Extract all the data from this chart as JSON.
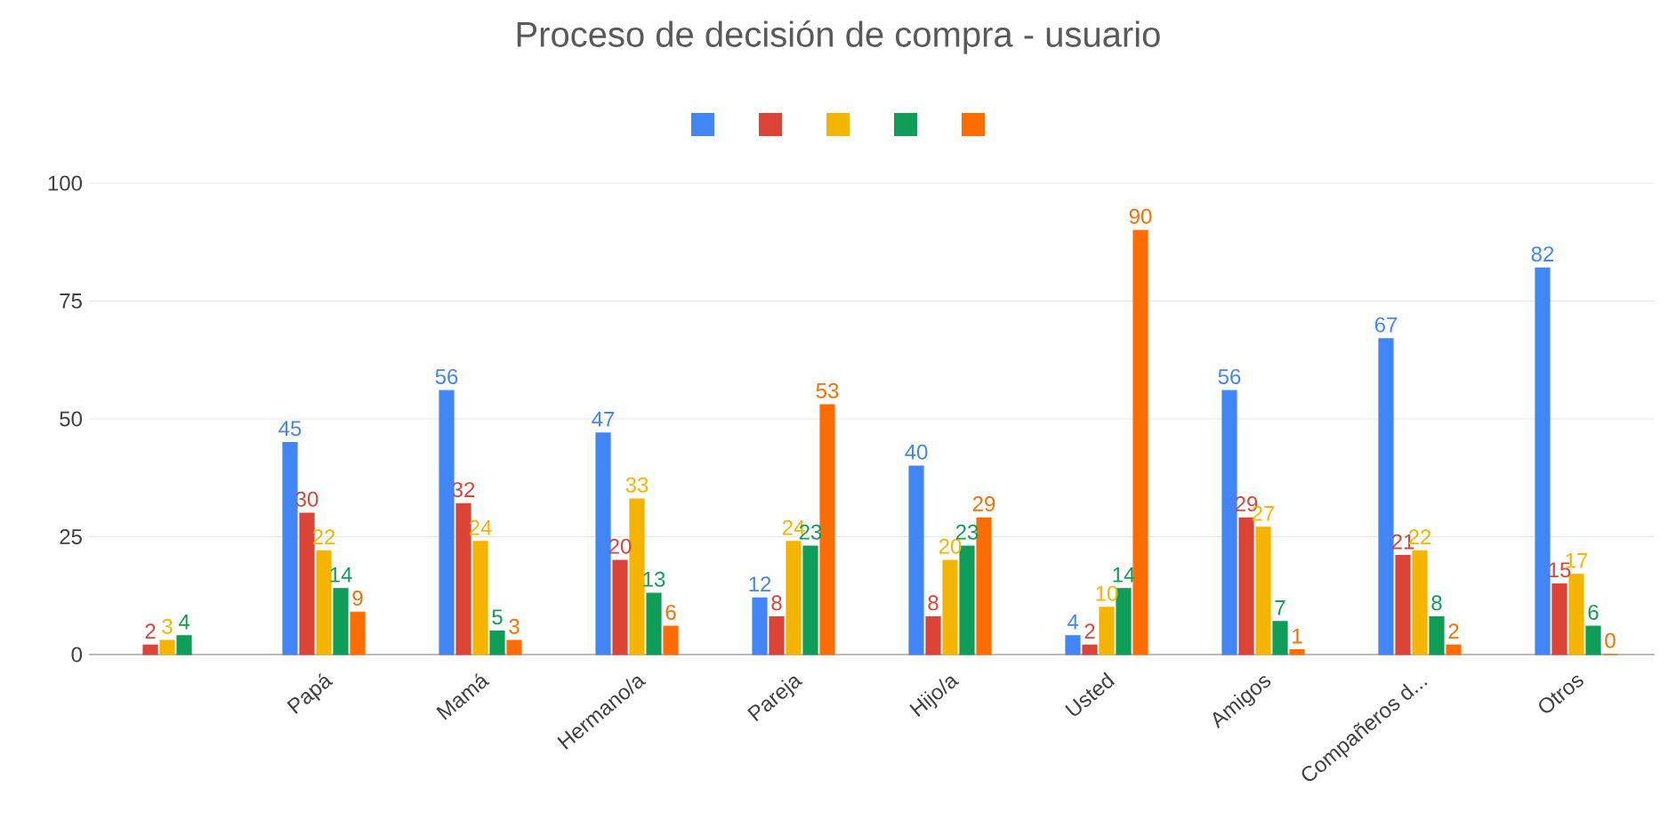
{
  "chart_data": {
    "type": "bar",
    "title": "Proceso de decisión de compra - usuario",
    "categories": [
      null,
      "Papá",
      "Mamá",
      "Hermano/a",
      "Pareja",
      "Hijo/a",
      "Usted",
      "Amigos",
      "Compañeros d...",
      "Otros"
    ],
    "series": [
      {
        "color": "#4285f4",
        "values": [
          null,
          45,
          56,
          47,
          12,
          40,
          4,
          56,
          67,
          82
        ]
      },
      {
        "color": "#db4437",
        "values": [
          2,
          30,
          32,
          20,
          8,
          8,
          2,
          29,
          21,
          15
        ]
      },
      {
        "color": "#f4b400",
        "values": [
          3,
          22,
          24,
          33,
          24,
          20,
          10,
          27,
          22,
          17
        ]
      },
      {
        "color": "#0f9d58",
        "values": [
          4,
          14,
          5,
          13,
          23,
          23,
          14,
          7,
          8,
          6
        ]
      },
      {
        "color": "#ff6d01",
        "values": [
          null,
          9,
          3,
          6,
          53,
          29,
          90,
          1,
          2,
          0
        ]
      }
    ],
    "ylim": [
      0,
      100
    ],
    "yticks": [
      0,
      25,
      50,
      75,
      100
    ],
    "grid": "y",
    "data_labels": true
  }
}
